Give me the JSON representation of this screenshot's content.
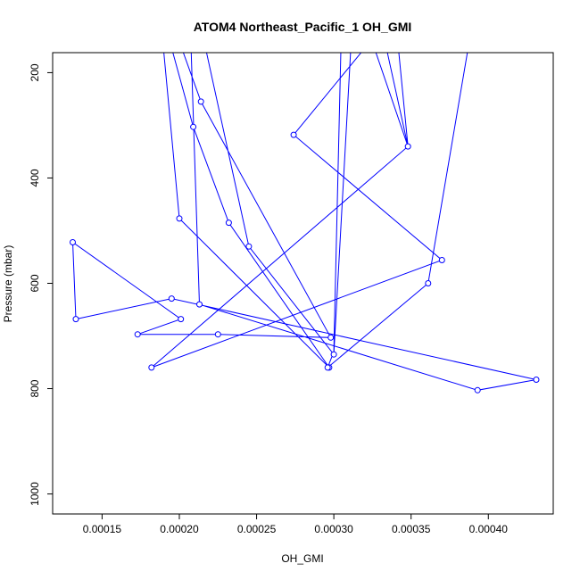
{
  "chart_data": {
    "type": "line",
    "title": "ATOM4 Northeast_Pacific_1 OH_GMI",
    "xlabel": "OH_GMI",
    "ylabel": "Pressure (mbar)",
    "xlim": [
      0.000118,
      0.000442
    ],
    "ylim": [
      1038,
      162
    ],
    "y_reversed": true,
    "x_ticks": [
      "0.00015",
      "0.00020",
      "0.00025",
      "0.00030",
      "0.00035",
      "0.00040"
    ],
    "x_tick_values": [
      0.00015,
      0.0002,
      0.00025,
      0.0003,
      0.00035,
      0.0004
    ],
    "y_ticks": [
      "200",
      "400",
      "600",
      "800",
      "1000"
    ],
    "y_tick_values": [
      200,
      400,
      600,
      800,
      1000
    ],
    "color": "#0000ff",
    "series": [
      {
        "points": [
          [
            0.000188,
            100
          ],
          [
            0.0002,
            477
          ],
          [
            0.000297,
            760
          ],
          [
            0.000232,
            485
          ],
          [
            0.000209,
            303
          ],
          [
            0.00019,
            100
          ],
          [
            0.000207,
            100
          ],
          [
            0.000213,
            640
          ],
          [
            0.000393,
            803
          ],
          [
            0.000431,
            783
          ],
          [
            0.000195,
            629
          ],
          [
            0.000133,
            668
          ],
          [
            0.000131,
            522
          ],
          [
            0.000201,
            668
          ],
          [
            0.000173,
            697
          ],
          [
            0.000225,
            697
          ],
          [
            0.000298,
            703
          ],
          [
            0.000214,
            255
          ],
          [
            0.000195,
            100
          ],
          [
            0.000213,
            100
          ],
          [
            0.000245,
            530
          ],
          [
            0.0003,
            735
          ],
          [
            0.000312,
            100
          ],
          [
            0.00032,
            100
          ],
          [
            0.000348,
            340
          ],
          [
            0.00033,
            100
          ],
          [
            0.000335,
            100
          ],
          [
            0.000274,
            318
          ],
          [
            0.00037,
            556
          ],
          [
            0.000182,
            760
          ],
          [
            0.000348,
            340
          ],
          [
            0.00034,
            100
          ],
          [
            0.000305,
            100
          ],
          [
            0.0003,
            730
          ],
          [
            0.000296,
            760
          ],
          [
            0.000361,
            600
          ],
          [
            0.00039,
            100
          ]
        ],
        "markers": [
          [
            0.0002,
            477
          ],
          [
            0.000297,
            760
          ],
          [
            0.000232,
            485
          ],
          [
            0.000209,
            303
          ],
          [
            0.000213,
            640
          ],
          [
            0.000393,
            803
          ],
          [
            0.000431,
            783
          ],
          [
            0.000195,
            629
          ],
          [
            0.000133,
            668
          ],
          [
            0.000131,
            522
          ],
          [
            0.000201,
            668
          ],
          [
            0.000173,
            697
          ],
          [
            0.000225,
            697
          ],
          [
            0.000298,
            703
          ],
          [
            0.000214,
            255
          ],
          [
            0.000245,
            530
          ],
          [
            0.0003,
            735
          ],
          [
            0.000348,
            340
          ],
          [
            0.000274,
            318
          ],
          [
            0.00037,
            556
          ],
          [
            0.000182,
            760
          ],
          [
            0.000361,
            600
          ],
          [
            0.000296,
            760
          ]
        ]
      }
    ]
  }
}
